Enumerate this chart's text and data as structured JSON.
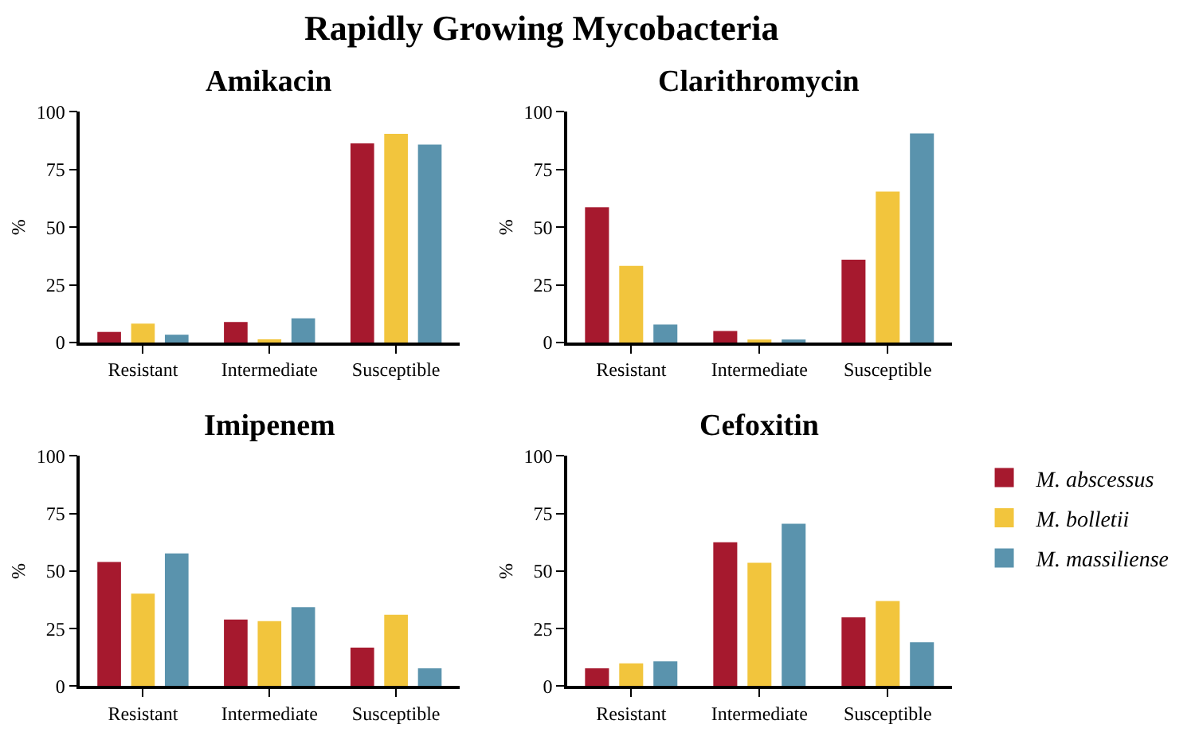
{
  "chart_data": [
    {
      "type": "bar",
      "title": "Amikacin",
      "ylabel": "%",
      "annotations": [
        "Rapidly Growing Mycobacteria"
      ],
      "categories": [
        "Resistant",
        "Intermediate",
        "Susceptible"
      ],
      "ylim": [
        0,
        100
      ],
      "yticks": [
        0,
        25,
        50,
        75,
        100
      ],
      "grid": false,
      "legend": "right",
      "series": [
        {
          "name": "M. abscessus",
          "color": "#a6192e",
          "values": [
            4.6,
            8.9,
            86.3
          ]
        },
        {
          "name": "M. bolletii",
          "color": "#f2c53d",
          "values": [
            8.2,
            1.4,
            90.4
          ]
        },
        {
          "name": "M. massiliense",
          "color": "#5a93ad",
          "values": [
            3.4,
            10.5,
            85.8
          ]
        }
      ]
    },
    {
      "type": "bar",
      "title": "Clarithromycin",
      "ylabel": "%",
      "categories": [
        "Resistant",
        "Intermediate",
        "Susceptible"
      ],
      "ylim": [
        0,
        100
      ],
      "yticks": [
        0,
        25,
        50,
        75,
        100
      ],
      "grid": false,
      "series": [
        {
          "color": "#a6192e",
          "values": [
            58.6,
            5.0,
            35.9
          ]
        },
        {
          "color": "#f2c53d",
          "values": [
            33.2,
            1.1,
            65.4
          ]
        },
        {
          "color": "#5a93ad",
          "values": [
            7.8,
            1.1,
            90.6
          ]
        }
      ]
    },
    {
      "type": "bar",
      "title": "Imipenem",
      "ylabel": "%",
      "categories": [
        "Resistant",
        "Intermediate",
        "Susceptible"
      ],
      "ylim": [
        0,
        100
      ],
      "yticks": [
        0,
        25,
        50,
        75,
        100
      ],
      "grid": false,
      "series": [
        {
          "color": "#a6192e",
          "values": [
            54.0,
            29.0,
            16.8
          ]
        },
        {
          "color": "#f2c53d",
          "values": [
            40.2,
            28.3,
            31.0
          ]
        },
        {
          "color": "#5a93ad",
          "values": [
            57.7,
            34.3,
            7.8
          ]
        }
      ]
    },
    {
      "type": "bar",
      "title": "Cefoxitin",
      "ylabel": "%",
      "categories": [
        "Resistant",
        "Intermediate",
        "Susceptible"
      ],
      "ylim": [
        0,
        100
      ],
      "yticks": [
        0,
        25,
        50,
        75,
        100
      ],
      "grid": false,
      "series": [
        {
          "color": "#a6192e",
          "values": [
            7.8,
            62.5,
            29.9
          ]
        },
        {
          "color": "#f2c53d",
          "values": [
            9.9,
            53.6,
            37.0
          ]
        },
        {
          "color": "#5a93ad",
          "values": [
            10.8,
            70.6,
            19.1
          ]
        }
      ]
    }
  ]
}
